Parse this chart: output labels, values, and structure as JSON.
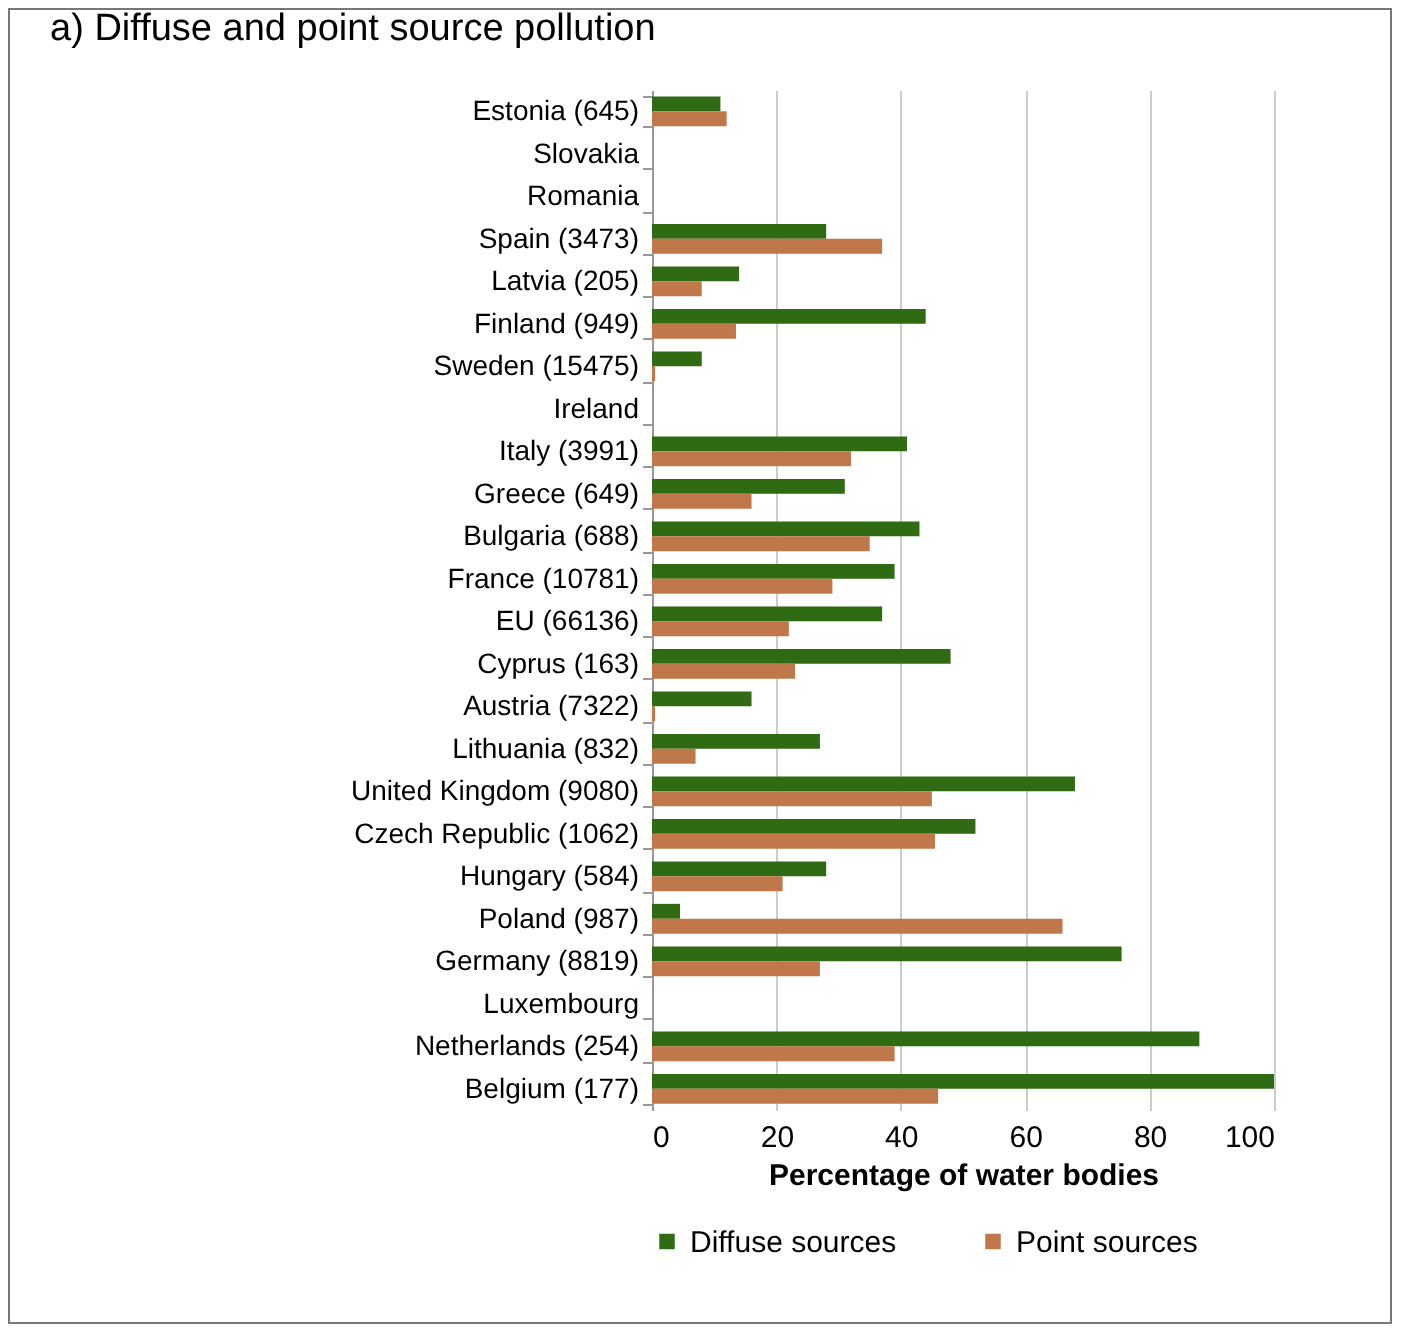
{
  "chart_data": {
    "type": "bar",
    "orientation": "horizontal",
    "title": "a)   Diffuse and point source pollution",
    "xlabel": "Percentage of water bodies",
    "categories": [
      "Estonia (645)",
      "Slovakia",
      "Romania",
      "Spain (3473)",
      "Latvia (205)",
      "Finland (949)",
      "Sweden (15475)",
      "Ireland",
      "Italy (3991)",
      "Greece (649)",
      "Bulgaria (688)",
      "France (10781)",
      "EU (66136)",
      "Cyprus (163)",
      "Austria (7322)",
      "Lithuania (832)",
      "United Kingdom (9080)",
      "Czech Republic (1062)",
      "Hungary (584)",
      "Poland (987)",
      "Germany (8819)",
      "Luxembourg",
      "Netherlands (254)",
      "Belgium (177)"
    ],
    "series": [
      {
        "name": "Diffuse sources",
        "color": "#2e6b12",
        "values": [
          11,
          null,
          null,
          28,
          14,
          44,
          8,
          null,
          41,
          31,
          43,
          39,
          37,
          48,
          16,
          27,
          68,
          52,
          28,
          4.5,
          75.5,
          null,
          88,
          100
        ]
      },
      {
        "name": "Point sources",
        "color": "#c0784a",
        "values": [
          12,
          null,
          null,
          37,
          8,
          13.5,
          0.5,
          null,
          32,
          16,
          35,
          29,
          22,
          23,
          0.5,
          7,
          45,
          45.5,
          21,
          66,
          27,
          null,
          39,
          46
        ]
      }
    ],
    "xlim": [
      0,
      100
    ],
    "xticks": [
      0,
      20,
      40,
      60,
      80,
      100
    ],
    "grid": "x",
    "legend": "bottom"
  }
}
